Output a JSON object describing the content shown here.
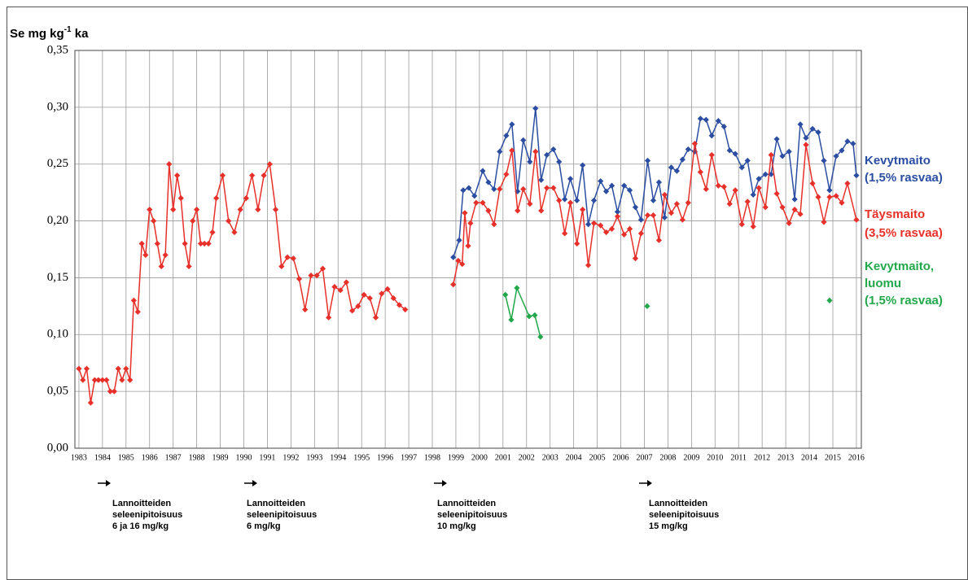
{
  "chart_data": {
    "type": "line",
    "y_label": [
      "Se mg kg",
      "-1",
      " ka"
    ],
    "xlim": [
      1982.83,
      2016.21
    ],
    "ylim": [
      0,
      0.35
    ],
    "xticks": [
      1983,
      1984,
      1985,
      1986,
      1987,
      1988,
      1989,
      1990,
      1991,
      1992,
      1993,
      1994,
      1995,
      1996,
      1997,
      1998,
      1999,
      2000,
      2001,
      2002,
      2003,
      2004,
      2005,
      2006,
      2007,
      2008,
      2009,
      2010,
      2011,
      2012,
      2013,
      2014,
      2015,
      2016
    ],
    "yticks": [
      {
        "value": 0,
        "label": "0,00"
      },
      {
        "value": 0.05,
        "label": "0,05"
      },
      {
        "value": 0.1,
        "label": "0,10"
      },
      {
        "value": 0.15,
        "label": "0,15"
      },
      {
        "value": 0.2,
        "label": "0,20"
      },
      {
        "value": 0.25,
        "label": "0,25"
      },
      {
        "value": 0.3,
        "label": "0,30"
      },
      {
        "value": 0.35,
        "label": "0,35"
      }
    ],
    "grid": true,
    "series": [
      {
        "name": [
          "Kevytmaito",
          "(1,5% rasvaa)"
        ],
        "color": "#2b4ea2",
        "x": [
          1998.89,
          1999.14,
          1999.31,
          1999.55,
          1999.79,
          2000.14,
          2000.38,
          2000.62,
          2000.86,
          2001.14,
          2001.38,
          2001.62,
          2001.86,
          2002.14,
          2002.38,
          2002.62,
          2002.86,
          2003.14,
          2003.38,
          2003.62,
          2003.86,
          2004.14,
          2004.38,
          2004.62,
          2004.86,
          2005.14,
          2005.38,
          2005.62,
          2005.86,
          2006.14,
          2006.38,
          2006.62,
          2006.86,
          2007.14,
          2007.38,
          2007.62,
          2007.86,
          2008.14,
          2008.38,
          2008.62,
          2008.86,
          2009.14,
          2009.38,
          2009.62,
          2009.86,
          2010.14,
          2010.38,
          2010.62,
          2010.86,
          2011.14,
          2011.38,
          2011.62,
          2011.86,
          2012.14,
          2012.38,
          2012.62,
          2012.86,
          2013.14,
          2013.38,
          2013.62,
          2013.86,
          2014.14,
          2014.38,
          2014.62,
          2014.86,
          2015.14,
          2015.38,
          2015.62,
          2015.86,
          2016
        ],
        "values": [
          0.168,
          0.183,
          0.227,
          0.229,
          0.222,
          0.244,
          0.234,
          0.228,
          0.261,
          0.275,
          0.285,
          0.226,
          0.271,
          0.252,
          0.299,
          0.236,
          0.258,
          0.263,
          0.252,
          0.219,
          0.237,
          0.218,
          0.249,
          0.197,
          0.218,
          0.235,
          0.226,
          0.231,
          0.208,
          0.231,
          0.227,
          0.212,
          0.201,
          0.253,
          0.218,
          0.234,
          0.203,
          0.247,
          0.244,
          0.254,
          0.263,
          0.261,
          0.29,
          0.289,
          0.275,
          0.288,
          0.283,
          0.262,
          0.259,
          0.247,
          0.253,
          0.223,
          0.237,
          0.241,
          0.241,
          0.272,
          0.257,
          0.261,
          0.219,
          0.285,
          0.273,
          0.281,
          0.278,
          0.253,
          0.227,
          0.257,
          0.262,
          0.27,
          0.268,
          0.24
        ]
      },
      {
        "name": [
          "Täysmaito",
          "(3,5% rasvaa)"
        ],
        "color": "#e8302a",
        "x": [
          1983,
          1983.17,
          1983.33,
          1983.5,
          1983.67,
          1983.83,
          1984,
          1984.17,
          1984.33,
          1984.5,
          1984.67,
          1984.83,
          1985,
          1985.17,
          1985.33,
          1985.5,
          1985.67,
          1985.83,
          1986,
          1986.17,
          1986.33,
          1986.5,
          1986.67,
          1986.83,
          1987,
          1987.17,
          1987.33,
          1987.5,
          1987.67,
          1987.83,
          1988,
          1988.17,
          1988.33,
          1988.5,
          1988.67,
          1988.83,
          1989.1,
          1989.35,
          1989.6,
          1989.85,
          1990.1,
          1990.35,
          1990.6,
          1990.85,
          1991.1,
          1991.35,
          1991.6,
          1991.85,
          1992.1,
          1992.35,
          1992.6,
          1992.85,
          1993.1,
          1993.35,
          1993.6,
          1993.85,
          1994.1,
          1994.35,
          1994.6,
          1994.85,
          1995.1,
          1995.35,
          1995.6,
          1995.85,
          1996.1,
          1996.35,
          1996.6,
          1996.85,
          1998,
          1998.89,
          1999.1,
          1999.27,
          1999.38,
          1999.52,
          1999.62,
          1999.86,
          2000.14,
          2000.38,
          2000.62,
          2000.86,
          2001.14,
          2001.38,
          2001.62,
          2001.86,
          2002.14,
          2002.38,
          2002.62,
          2002.86,
          2003.14,
          2003.38,
          2003.62,
          2003.86,
          2004.14,
          2004.38,
          2004.62,
          2004.86,
          2005.14,
          2005.38,
          2005.62,
          2005.86,
          2006.14,
          2006.38,
          2006.62,
          2006.86,
          2007.14,
          2007.38,
          2007.62,
          2007.86,
          2008.14,
          2008.38,
          2008.62,
          2008.86,
          2009.14,
          2009.38,
          2009.62,
          2009.86,
          2010.14,
          2010.38,
          2010.62,
          2010.86,
          2011.14,
          2011.38,
          2011.62,
          2011.86,
          2012.14,
          2012.38,
          2012.62,
          2012.86,
          2013.14,
          2013.38,
          2013.62,
          2013.86,
          2014.14,
          2014.38,
          2014.62,
          2014.86,
          2015.14,
          2015.38,
          2015.62,
          2016
        ],
        "values": [
          0.07,
          0.06,
          0.07,
          0.04,
          0.06,
          0.06,
          0.06,
          0.06,
          0.05,
          0.05,
          0.07,
          0.06,
          0.07,
          0.06,
          0.13,
          0.12,
          0.18,
          0.17,
          0.21,
          0.2,
          0.18,
          0.16,
          0.17,
          0.25,
          0.21,
          0.24,
          0.22,
          0.18,
          0.16,
          0.2,
          0.21,
          0.18,
          0.18,
          0.18,
          0.19,
          0.22,
          0.24,
          0.2,
          0.19,
          0.21,
          0.22,
          0.24,
          0.21,
          0.24,
          0.25,
          0.21,
          0.16,
          0.168,
          0.167,
          0.149,
          0.122,
          0.152,
          0.152,
          0.158,
          0.115,
          0.142,
          0.139,
          0.146,
          0.121,
          0.125,
          0.135,
          0.132,
          0.115,
          0.136,
          0.14,
          0.132,
          0.126,
          0.122,
          null,
          0.144,
          0.165,
          0.162,
          0.207,
          0.178,
          0.198,
          0.216,
          0.216,
          0.209,
          0.197,
          0.228,
          0.241,
          0.262,
          0.209,
          0.228,
          0.215,
          0.261,
          0.209,
          0.229,
          0.229,
          0.218,
          0.189,
          0.216,
          0.18,
          0.21,
          0.161,
          0.198,
          0.196,
          0.19,
          0.193,
          0.204,
          0.188,
          0.193,
          0.167,
          0.189,
          0.205,
          0.205,
          0.183,
          0.223,
          0.207,
          0.215,
          0.201,
          0.216,
          0.268,
          0.243,
          0.228,
          0.258,
          0.231,
          0.23,
          0.215,
          0.227,
          0.197,
          0.217,
          0.195,
          0.229,
          0.212,
          0.258,
          0.224,
          0.212,
          0.198,
          0.21,
          0.206,
          0.267,
          0.233,
          0.221,
          0.199,
          0.221,
          0.222,
          0.216,
          0.233,
          0.201
        ]
      },
      {
        "name": [
          "Kevytmaito,",
          "luomu",
          "(1,5% rasvaa)"
        ],
        "color": "#22a84a",
        "x": [
          2001.1,
          2001.35,
          2001.59,
          2002.11,
          2002.35,
          2002.59,
          2005,
          2007.12,
          2010,
          2014.86
        ],
        "values": [
          0.135,
          0.113,
          0.141,
          0.116,
          0.117,
          0.098,
          null,
          0.125,
          null,
          0.13
        ]
      }
    ],
    "annotations": [
      [
        "Lannoitteiden",
        "seleenipitoisuus",
        "6 ja 16 mg/kg"
      ],
      [
        "Lannoitteiden",
        "seleenipitoisuus",
        "6 mg/kg"
      ],
      [
        "Lannoitteiden",
        "seleenipitoisuus",
        "10 mg/kg"
      ],
      [
        "Lannoitteiden",
        "seleenipitoisuus",
        "15 mg/kg"
      ]
    ]
  }
}
